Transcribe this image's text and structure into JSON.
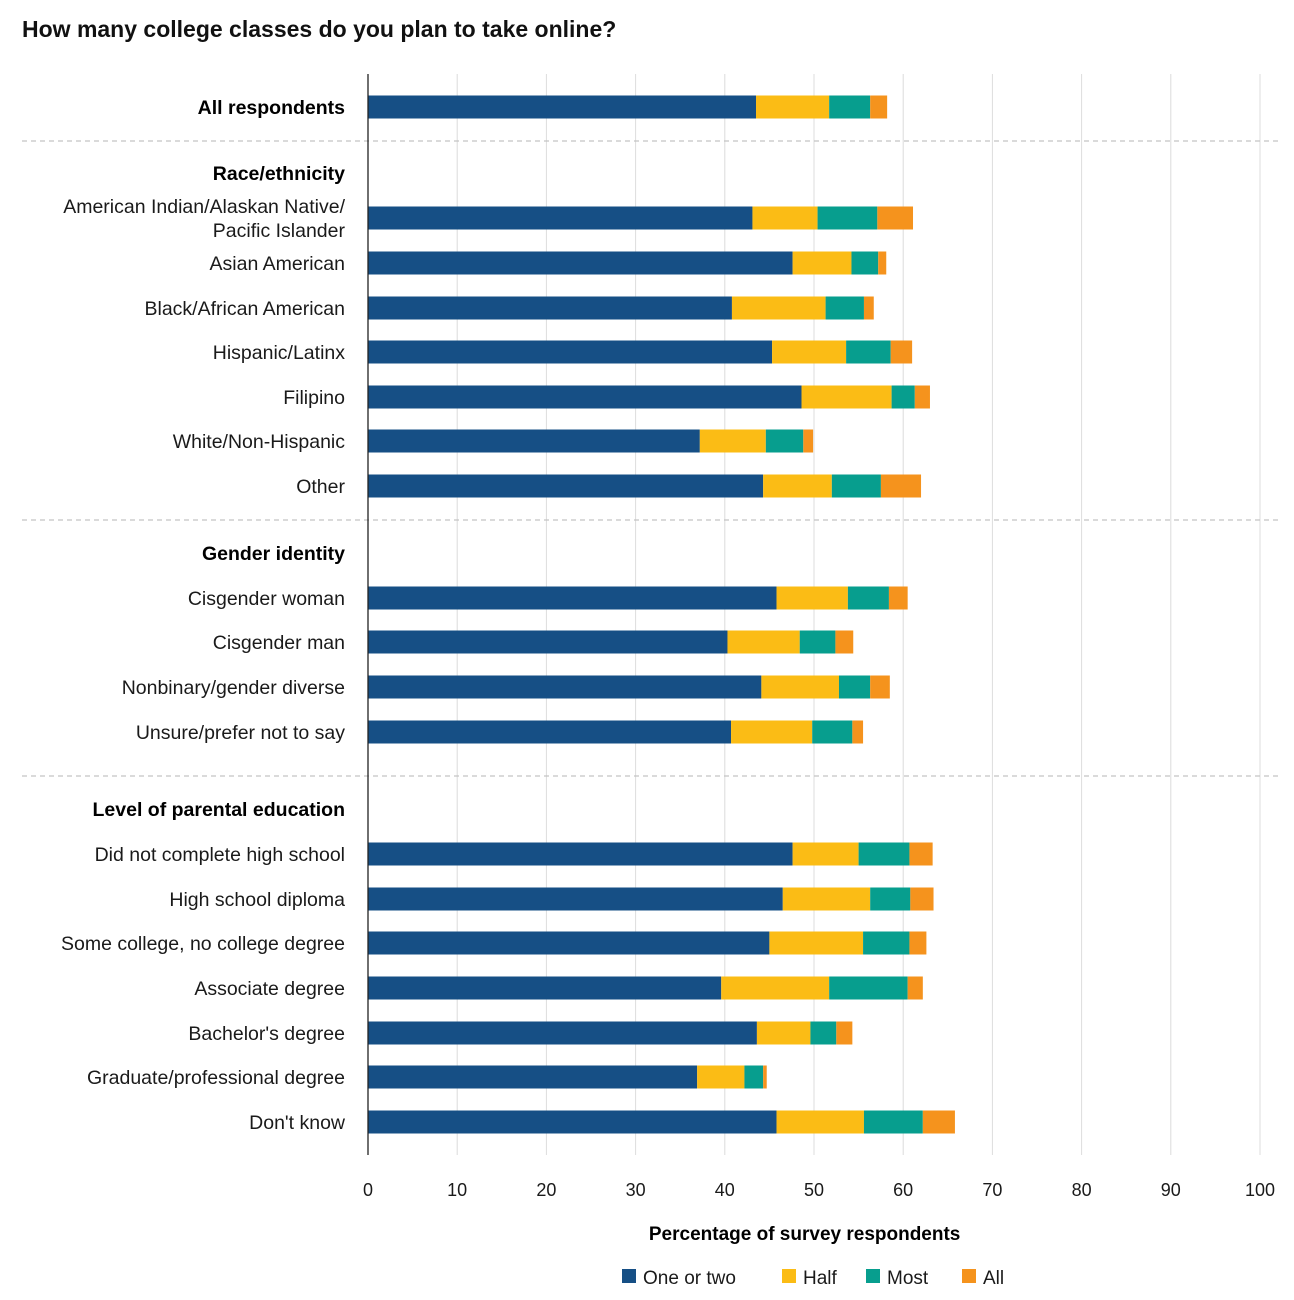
{
  "chart_data": {
    "type": "bar",
    "orientation": "horizontal",
    "stacked": true,
    "title": "How many college classes do you plan to take online?",
    "xlabel": "Percentage of survey respondents",
    "ylabel": "",
    "xlim": [
      0,
      100
    ],
    "xticks": [
      0,
      10,
      20,
      30,
      40,
      50,
      60,
      70,
      80,
      90,
      100
    ],
    "grid": true,
    "legend_position": "bottom",
    "colors": [
      "#164f85",
      "#fbbc15",
      "#079e8e",
      "#f5931d"
    ],
    "series_names": [
      "One or two",
      "Half",
      "Most",
      "All"
    ],
    "rows": [
      {
        "label": [
          "All respondents"
        ],
        "bold": true,
        "values": [
          43.5,
          8.2,
          4.6,
          1.9
        ]
      },
      {
        "divider": true
      },
      {
        "label": [
          "Race/ethnicity"
        ],
        "heading": true
      },
      {
        "label": [
          "American Indian/Alaskan Native/",
          "Pacific Islander"
        ],
        "values": [
          43.1,
          7.3,
          6.7,
          4.0
        ]
      },
      {
        "label": [
          "Asian American"
        ],
        "values": [
          47.6,
          6.6,
          3.0,
          0.9
        ]
      },
      {
        "label": [
          "Black/African American"
        ],
        "values": [
          40.8,
          10.5,
          4.3,
          1.1
        ]
      },
      {
        "label": [
          "Hispanic/Latinx"
        ],
        "values": [
          45.3,
          8.3,
          5.0,
          2.4
        ]
      },
      {
        "label": [
          "Filipino"
        ],
        "values": [
          48.6,
          10.1,
          2.6,
          1.7
        ]
      },
      {
        "label": [
          "White/Non-Hispanic"
        ],
        "values": [
          37.2,
          7.4,
          4.2,
          1.1
        ]
      },
      {
        "label": [
          "Other"
        ],
        "values": [
          44.3,
          7.7,
          5.5,
          4.5
        ]
      },
      {
        "divider": true
      },
      {
        "label": [
          "Gender identity"
        ],
        "heading": true
      },
      {
        "label": [
          "Cisgender woman"
        ],
        "values": [
          45.8,
          8.0,
          4.6,
          2.1
        ]
      },
      {
        "label": [
          "Cisgender man"
        ],
        "values": [
          40.3,
          8.1,
          4.0,
          2.0
        ]
      },
      {
        "label": [
          "Nonbinary/gender diverse"
        ],
        "values": [
          44.1,
          8.7,
          3.5,
          2.2
        ]
      },
      {
        "label": [
          "Unsure/prefer not to say"
        ],
        "values": [
          40.7,
          9.1,
          4.5,
          1.2
        ]
      },
      {
        "divider": true
      },
      {
        "label": [
          "Level of parental education"
        ],
        "heading": true
      },
      {
        "label": [
          "Did not complete high school"
        ],
        "values": [
          47.6,
          7.4,
          5.7,
          2.6
        ]
      },
      {
        "label": [
          "High school diploma"
        ],
        "values": [
          46.5,
          9.8,
          4.5,
          2.6
        ]
      },
      {
        "label": [
          "Some college, no college degree"
        ],
        "values": [
          45.0,
          10.5,
          5.2,
          1.9
        ]
      },
      {
        "label": [
          "Associate degree"
        ],
        "values": [
          39.6,
          12.1,
          8.8,
          1.7
        ]
      },
      {
        "label": [
          "Bachelor's degree"
        ],
        "values": [
          43.6,
          6.0,
          2.9,
          1.8
        ]
      },
      {
        "label": [
          "Graduate/professional degree"
        ],
        "values": [
          36.9,
          5.3,
          2.1,
          0.4
        ]
      },
      {
        "label": [
          "Don't know"
        ],
        "values": [
          45.8,
          9.8,
          6.6,
          3.6
        ]
      }
    ]
  }
}
